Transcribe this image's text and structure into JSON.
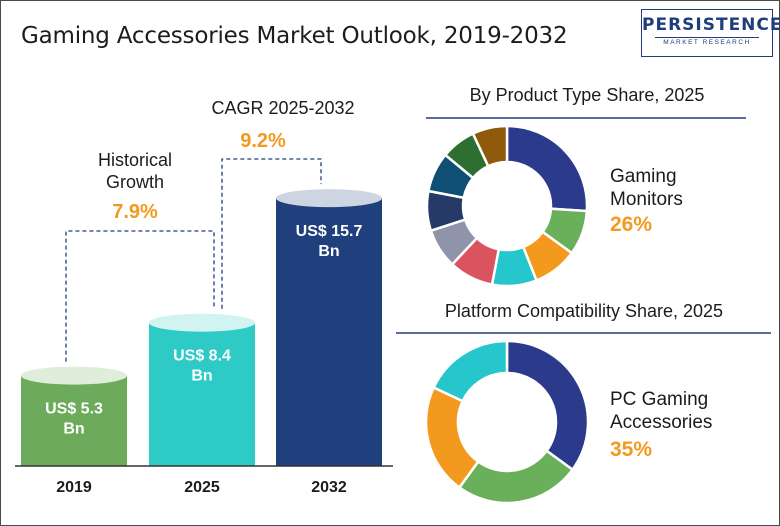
{
  "title": "Gaming Accessories Market Outlook, 2019-2032",
  "logo": {
    "name": "PERSISTENCE",
    "tagline": "MARKET RESEARCH"
  },
  "chart_data": [
    {
      "type": "bar",
      "style": "cylinder",
      "categories": [
        "2019",
        "2025",
        "2032"
      ],
      "values": [
        5.3,
        8.4,
        15.7
      ],
      "value_labels": [
        [
          "US$ 5.3",
          "Bn"
        ],
        [
          "US$ 8.4",
          "Bn"
        ],
        [
          "US$ 15.7",
          "Bn"
        ]
      ],
      "unit": "US$ Bn",
      "colors": [
        "#6dab5c",
        "#2ecbc6",
        "#1f3f7d"
      ],
      "annotations": [
        {
          "from": "2019",
          "to": "2025",
          "label": [
            "Historical",
            "Growth"
          ],
          "value": "7.9%"
        },
        {
          "from": "2025",
          "to": "2032",
          "label": [
            "CAGR 2025-2032"
          ],
          "value": "9.2%"
        }
      ]
    },
    {
      "type": "pie",
      "style": "donut",
      "title": "By Product Type Share, 2025",
      "highlight": {
        "label": [
          "Gaming",
          "Monitors"
        ],
        "value": "26%"
      },
      "values": [
        26,
        9,
        9,
        9,
        9,
        8,
        8,
        8,
        7,
        7
      ],
      "colors": [
        "#2c3a8c",
        "#6aaf5a",
        "#f39a1e",
        "#25c6cc",
        "#d9545e",
        "#8f94ab",
        "#263a68",
        "#0f4f73",
        "#2e6e30",
        "#8f5a0c"
      ]
    },
    {
      "type": "pie",
      "style": "donut",
      "title": "Platform Compatibility Share, 2025",
      "highlight": {
        "label": [
          "PC Gaming",
          "Accessories"
        ],
        "value": "35%"
      },
      "values": [
        35,
        25,
        22,
        18
      ],
      "colors": [
        "#2c3a8c",
        "#6aaf5a",
        "#f39a1e",
        "#25c6cc"
      ]
    }
  ]
}
